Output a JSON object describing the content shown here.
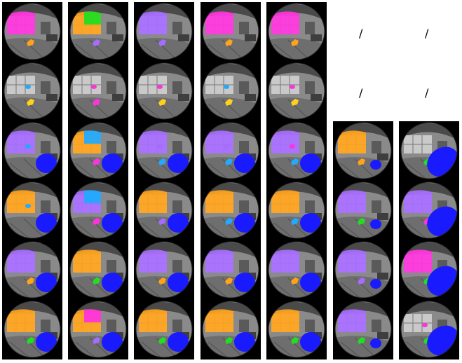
{
  "placeholders": [
    "/",
    "/",
    "/",
    "/"
  ],
  "colors": {
    "magenta": "#ff33dd",
    "purple": "#a66bff",
    "orange": "#ffa31a",
    "green": "#22dd22",
    "cyan": "#22aaff",
    "blue": "#1a1aff",
    "gold": "#ffd21a"
  },
  "columns": [
    {
      "rows": [
        {
          "window": "magenta",
          "lamp": "orange",
          "blob": null
        },
        {
          "window": null,
          "lamp": "gold",
          "spot": "cyan",
          "blob": null
        },
        {
          "window": "purple",
          "lamp": null,
          "spot": "cyan",
          "blob": "blue"
        },
        {
          "window": "orange",
          "lamp": null,
          "spot": "cyan",
          "blob": "blue"
        },
        {
          "window": "purple",
          "lamp": "orange",
          "blob": "blue"
        },
        {
          "window": "orange",
          "lamp": "green",
          "blob": "blue"
        }
      ]
    },
    {
      "rows": [
        {
          "window": "orange",
          "window2": "green",
          "lamp": "purple",
          "blob": null
        },
        {
          "window": null,
          "lamp": "magenta",
          "spot": "magenta",
          "blob": null
        },
        {
          "window": "orange",
          "window2": "cyan",
          "lamp": "magenta",
          "blob": "blue"
        },
        {
          "window": "purple",
          "window2": "cyan",
          "lamp": "magenta",
          "blob": "blue"
        },
        {
          "window": "orange",
          "lamp": "green",
          "blob": "blue"
        },
        {
          "window": "orange",
          "window2": "magenta",
          "lamp": "purple",
          "blob": "blue"
        }
      ]
    },
    {
      "rows": [
        {
          "window": "purple",
          "lamp": "purple",
          "blob": null
        },
        {
          "window": null,
          "lamp": "gold",
          "spot": "magenta",
          "blob": null
        },
        {
          "window": "purple",
          "lamp": "cyan",
          "spot": "purple",
          "blob": "blue"
        },
        {
          "window": "orange",
          "lamp": "purple",
          "blob": "blue"
        },
        {
          "window": "purple",
          "lamp": "orange",
          "blob": "blue"
        },
        {
          "window": "orange",
          "lamp": "green",
          "blob": "blue"
        }
      ]
    },
    {
      "rows": [
        {
          "window": "magenta",
          "lamp": "orange",
          "blob": null
        },
        {
          "window": null,
          "lamp": "gold",
          "spot": "cyan",
          "blob": null
        },
        {
          "window": "purple",
          "lamp": "cyan",
          "spot": "purple",
          "blob": "blue"
        },
        {
          "window": "orange",
          "lamp": "cyan",
          "blob": "blue"
        },
        {
          "window": "purple",
          "lamp": "orange",
          "blob": "blue"
        },
        {
          "window": "orange",
          "lamp": "green",
          "blob": "blue"
        }
      ]
    },
    {
      "rows": [
        {
          "window": "magenta",
          "lamp": "orange",
          "blob": null
        },
        {
          "window": null,
          "lamp": "gold",
          "spot": "magenta",
          "blob": null
        },
        {
          "window": "purple",
          "lamp": "cyan",
          "spot": "magenta",
          "blob": "blue"
        },
        {
          "window": "orange",
          "lamp": "cyan",
          "blob": "blue"
        },
        {
          "window": "purple",
          "lamp": "orange",
          "blob": "blue"
        },
        {
          "window": "orange",
          "lamp": "green",
          "blob": "blue"
        }
      ]
    },
    {
      "rows": [
        {
          "window": "orange",
          "lamp": "orange",
          "blob": "blue-small"
        },
        {
          "window": "purple",
          "lamp": "green",
          "blob": "blue-small"
        },
        {
          "window": "purple",
          "lamp": "purple",
          "blob": "blue-small"
        },
        {
          "window": "purple",
          "lamp": "green",
          "blob": "blue-small"
        }
      ]
    },
    {
      "rows": [
        {
          "window": null,
          "lamp": "green",
          "blob": "blue-large"
        },
        {
          "window": "purple",
          "lamp": "magenta",
          "blob": "blue-large"
        },
        {
          "window": "magenta",
          "lamp": "green",
          "blob": "blue-large"
        },
        {
          "window": null,
          "spot": "magenta",
          "lamp": "green",
          "blob": "blue-large"
        }
      ]
    }
  ]
}
